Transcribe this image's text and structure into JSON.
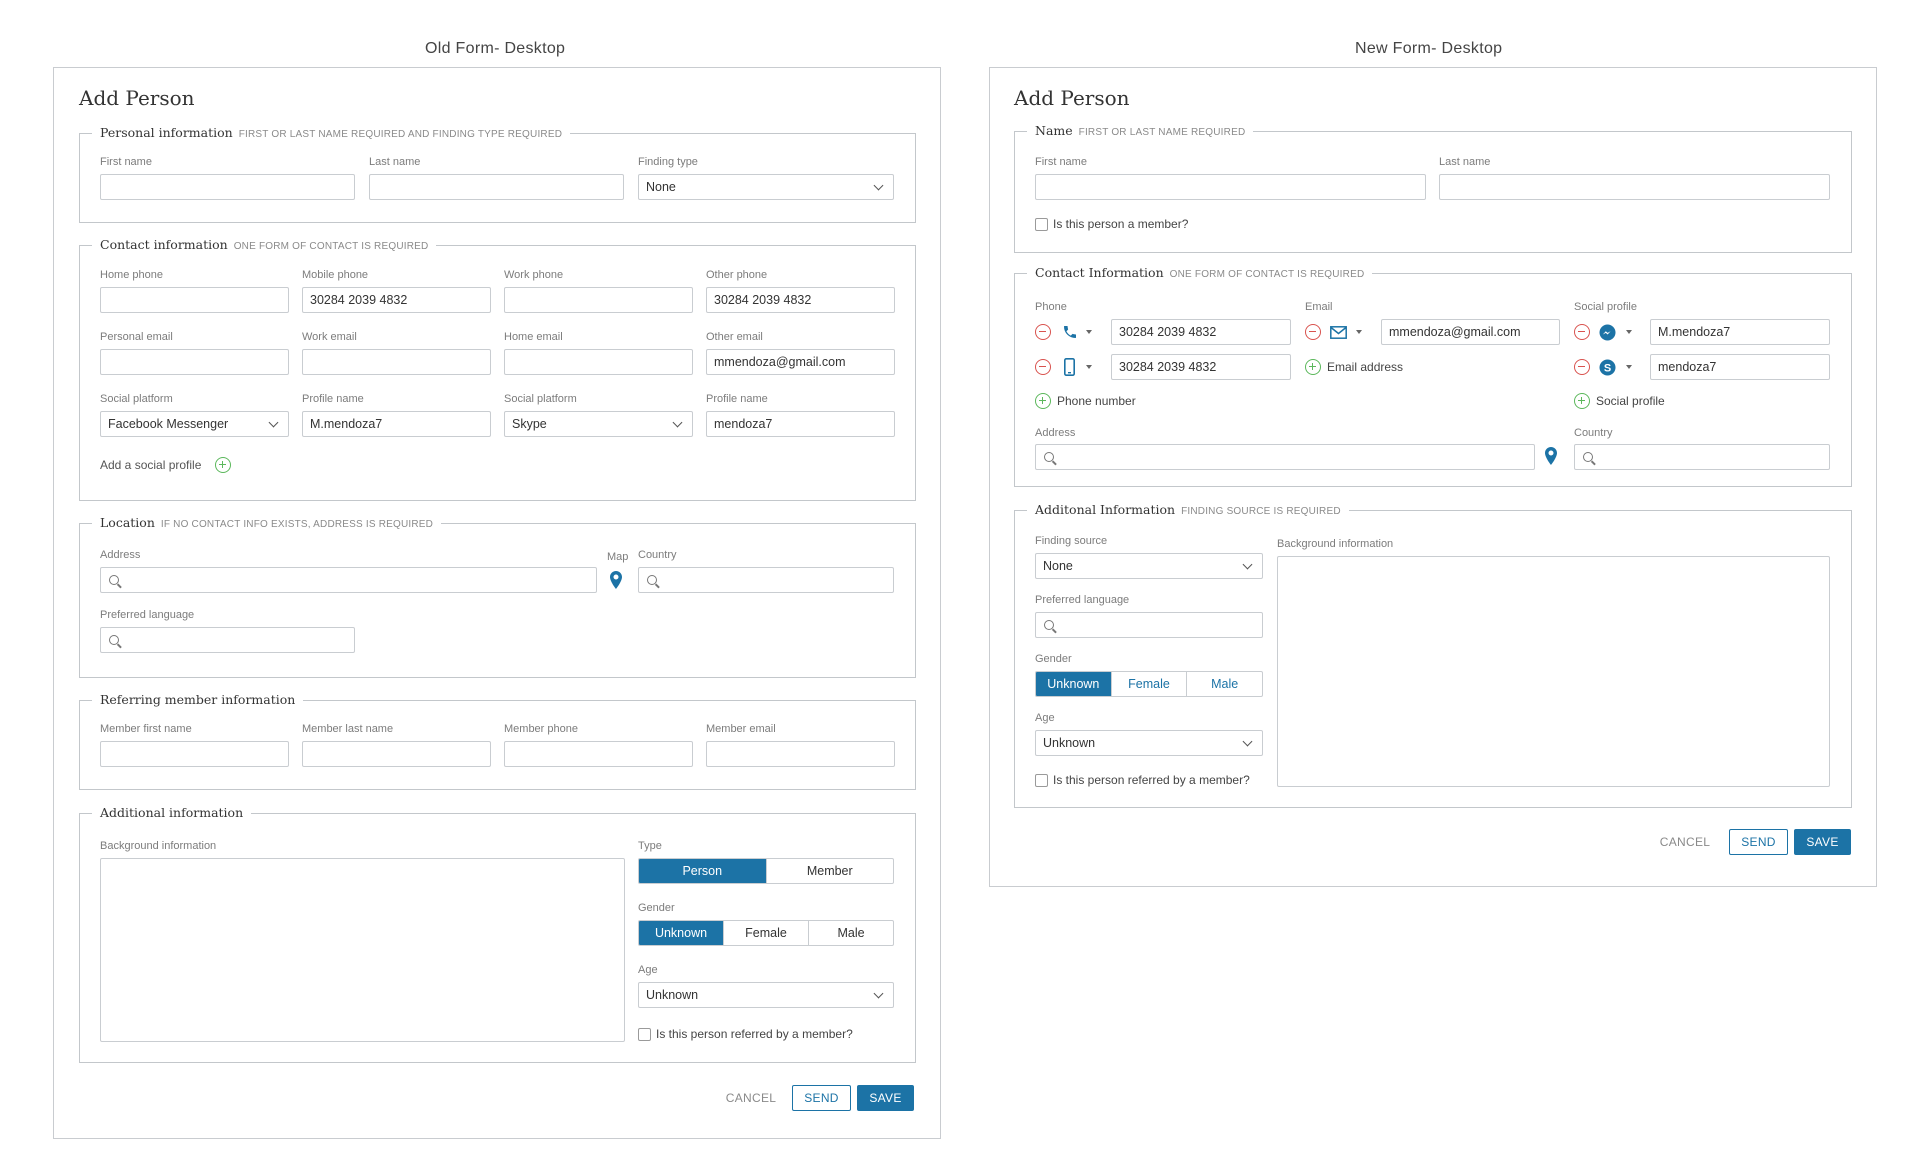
{
  "captions": {
    "old": "Old Form- Desktop",
    "new": "New Form- Desktop"
  },
  "colors": {
    "accent": "#1c73a6",
    "remove": "#d9534f",
    "add": "#5cb85c"
  },
  "old": {
    "title": "Add Person",
    "personal": {
      "name": "Personal information",
      "note": "FIRST OR LAST NAME REQUIRED AND FINDING TYPE REQUIRED",
      "first_name": "First name",
      "last_name": "Last name",
      "finding_type": "Finding type",
      "finding_value": "None"
    },
    "contact": {
      "name": "Contact information",
      "note": "ONE FORM OF CONTACT IS REQUIRED",
      "home_phone": "Home phone",
      "mobile_phone": "Mobile phone",
      "mobile_value": "30284 2039 4832",
      "work_phone": "Work phone",
      "other_phone": "Other phone",
      "other_phone_value": "30284 2039 4832",
      "personal_email": "Personal email",
      "work_email": "Work email",
      "home_email": "Home email",
      "other_email": "Other email",
      "other_email_value": "mmendoza@gmail.com",
      "social1": "Social platform",
      "social1_value": "Facebook Messenger",
      "profile1": "Profile name",
      "profile1_value": "M.mendoza7",
      "social2": "Social platform",
      "social2_value": "Skype",
      "profile2": "Profile name",
      "profile2_value": "mendoza7",
      "add_social": "Add a social profile"
    },
    "location": {
      "name": "Location",
      "note": "IF NO CONTACT INFO EXISTS, ADDRESS IS REQUIRED",
      "address": "Address",
      "map": "Map",
      "country": "Country",
      "language": "Preferred language"
    },
    "referring": {
      "name": "Referring member information",
      "first": "Member first name",
      "last": "Member last name",
      "phone": "Member phone",
      "email": "Member email"
    },
    "additional": {
      "name": "Additional information",
      "background": "Background information",
      "type": "Type",
      "type_options": [
        "Person",
        "Member"
      ],
      "gender": "Gender",
      "gender_options": [
        "Unknown",
        "Female",
        "Male"
      ],
      "age": "Age",
      "age_value": "Unknown",
      "referred": "Is this person referred by a member?"
    },
    "buttons": {
      "cancel": "CANCEL",
      "send": "SEND",
      "save": "SAVE"
    }
  },
  "new": {
    "title": "Add Person",
    "name": {
      "name": "Name",
      "note": "FIRST OR LAST NAME REQUIRED",
      "first_name": "First name",
      "last_name": "Last name",
      "member_q": "Is this person a member?"
    },
    "contact": {
      "name": "Contact Information",
      "note": "ONE FORM OF CONTACT IS REQUIRED",
      "phone": "Phone",
      "phone1": "30284 2039 4832",
      "phone2": "30284 2039 4832",
      "add_phone": "Phone number",
      "email": "Email",
      "email1": "mmendoza@gmail.com",
      "add_email": "Email address",
      "social": "Social profile",
      "social1": "M.mendoza7",
      "social2": "mendoza7",
      "add_social": "Social profile",
      "address": "Address",
      "country": "Country"
    },
    "additional": {
      "name": "Additonal Information",
      "note": "FINDING SOURCE IS REQUIRED",
      "finding": "Finding source",
      "finding_value": "None",
      "language": "Preferred language",
      "background": "Background information",
      "gender": "Gender",
      "gender_options": [
        "Unknown",
        "Female",
        "Male"
      ],
      "age": "Age",
      "age_value": "Unknown",
      "referred": "Is this person referred by a member?"
    },
    "buttons": {
      "cancel": "CANCEL",
      "send": "SEND",
      "save": "SAVE"
    }
  }
}
